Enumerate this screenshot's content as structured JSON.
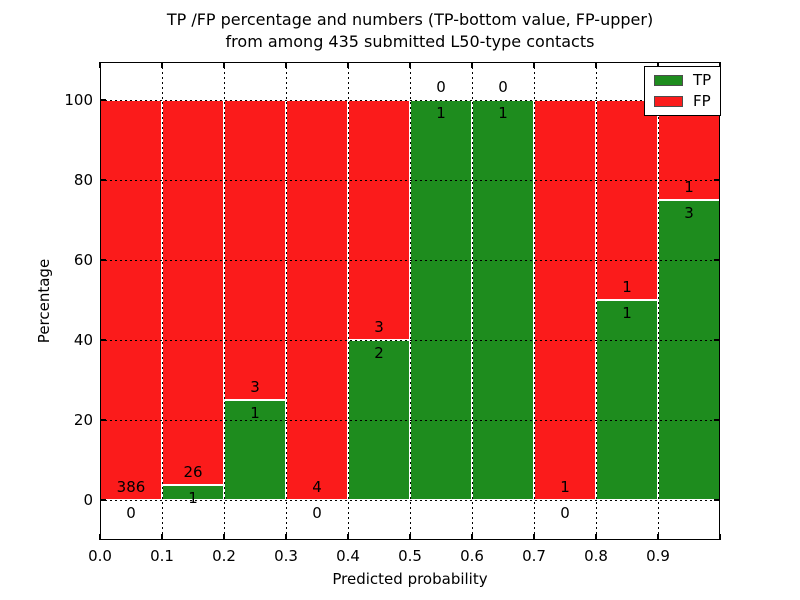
{
  "title": {
    "line1": "TP /FP percentage and numbers (TP-bottom value, FP-upper)",
    "line2": "from among 435 submitted L50-type contacts"
  },
  "x_axis": {
    "label": "Predicted probability",
    "ticks": [
      "0.0",
      "0.1",
      "0.2",
      "0.3",
      "0.4",
      "0.5",
      "0.6",
      "0.7",
      "0.8",
      "0.9"
    ]
  },
  "y_axis": {
    "label": "Percentage",
    "ticks": [
      "0",
      "20",
      "40",
      "60",
      "80",
      "100"
    ]
  },
  "legend": {
    "entries": [
      "TP",
      "FP"
    ]
  },
  "chart_data": {
    "type": "bar",
    "stacked": true,
    "orientation": "vertical",
    "title": "TP /FP percentage and numbers (TP-bottom value, FP-upper) from among 435 submitted L50-type contacts",
    "xlabel": "Predicted probability",
    "ylabel": "Percentage",
    "xlim": [
      0.0,
      1.0
    ],
    "ylim": [
      -10,
      110
    ],
    "grid": "dotted both axes, drawn over bars",
    "legend_position": "upper right",
    "total_contacts": 435,
    "bin_width": 0.1,
    "bins": [
      "0.0-0.1",
      "0.1-0.2",
      "0.2-0.3",
      "0.3-0.4",
      "0.4-0.5",
      "0.5-0.6",
      "0.6-0.7",
      "0.7-0.8",
      "0.8-0.9",
      "0.9-1.0"
    ],
    "series": [
      {
        "name": "TP",
        "position": "bottom",
        "color": "#1e8c1e",
        "counts": [
          0,
          1,
          1,
          0,
          2,
          1,
          1,
          0,
          1,
          3
        ]
      },
      {
        "name": "FP",
        "position": "upper",
        "color": "#fb1b1b",
        "counts": [
          386,
          26,
          3,
          4,
          3,
          0,
          0,
          1,
          1,
          1
        ]
      }
    ],
    "tp_percent": [
      0,
      3.7,
      25,
      0,
      40,
      100,
      100,
      0,
      50,
      75
    ],
    "bar_value_labels": "FP count above TP/FP boundary, TP count below boundary"
  }
}
